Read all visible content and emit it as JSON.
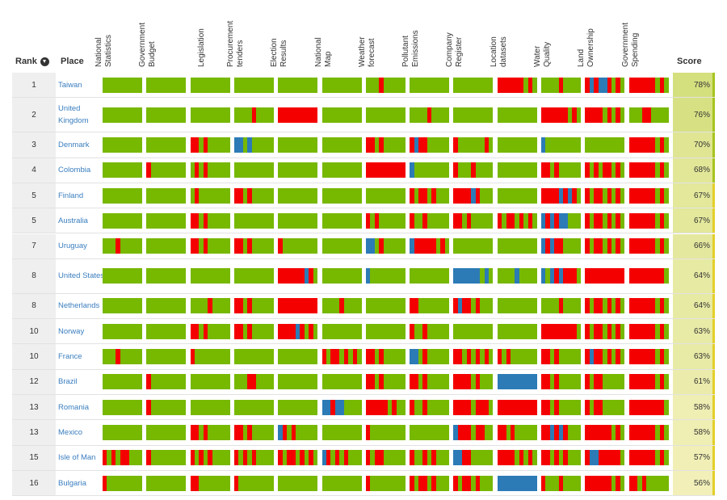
{
  "header": {
    "rank_label": "Rank",
    "place_label": "Place",
    "score_label": "Score",
    "sort_icon": "sort-down-circle-icon"
  },
  "datasets": [
    [
      "National",
      "Statistics"
    ],
    [
      "Government",
      "Budget"
    ],
    [
      "Legislation"
    ],
    [
      "Procurement",
      "tenders"
    ],
    [
      "Election",
      "Results"
    ],
    [
      "National",
      "Map"
    ],
    [
      "Weather",
      "forecast"
    ],
    [
      "Pollutant",
      "Emissions"
    ],
    [
      "Company",
      "Register"
    ],
    [
      "Location",
      "datasets"
    ],
    [
      "Water",
      "Quality"
    ],
    [
      "Land",
      "Ownership"
    ],
    [
      "Government",
      "Spending"
    ]
  ],
  "colors": {
    "open": "#77b800",
    "missing": "#f40000",
    "partial": "#2c7bb6",
    "rank_bg": "#efefef",
    "place_link": "#3a7ebf",
    "score_bg_high": "#d4df7e",
    "score_bg_low": "#f2f0b8"
  },
  "rows": [
    {
      "rank": "1",
      "place": "Taiwan",
      "score": "78%",
      "score_value": 78,
      "tall": false,
      "cells": [
        "GGGGGGGGG",
        "GGGGGGGGG",
        "GGGGGGGGG",
        "GGGGGGGGG",
        "GGGGGGGGG",
        "GGGGGGGGG",
        "GGGRGGGGG",
        "GGGGGGGGG",
        "GGGGGGGGG",
        "RRRRRRGRG",
        "GGGGRGGGG",
        "RBRBBRGRG",
        "RRRRRRGRG"
      ]
    },
    {
      "rank": "2",
      "place": "United Kingdom",
      "score": "76%",
      "score_value": 76,
      "tall": true,
      "cells": [
        "GGGGGGGGG",
        "GGGGGGGGG",
        "GGGGGGGGG",
        "GGGGRGGGG",
        "RRRRRRRRR",
        "GGGGGGGGG",
        "GGGGGGGGG",
        "GGGGRGGGG",
        "GGGGGGGGG",
        "GGGGGGGGG",
        "RRRRRRGRG",
        "RRRRGRGRG",
        "GGGRRGGGG"
      ]
    },
    {
      "rank": "3",
      "place": "Denmark",
      "score": "70%",
      "score_value": 70,
      "tall": false,
      "cells": [
        "GGGGGGGGG",
        "GGGGGGGGG",
        "RRGRGGGGG",
        "BBGBGGGGG",
        "GGGGGGGGG",
        "GGGGGGGGG",
        "RRGRGGGGG",
        "RBRRGGGGG",
        "RGGGGGGRG",
        "GGGGGGGGG",
        "BGGGGGGGG",
        "GGGGGGGGG",
        "RRRRRRGRG"
      ]
    },
    {
      "rank": "4",
      "place": "Colombia",
      "score": "68%",
      "score_value": 68,
      "tall": false,
      "cells": [
        "GGGGGGGGG",
        "RGGGGGGGG",
        "GRGRGGGGG",
        "GGGGGGGGG",
        "GGGGGGGGG",
        "GGGGGGGGG",
        "RRRRRRRRR",
        "BGGGGGGGG",
        "RGGGRGGGG",
        "GGGGGGGGG",
        "RRGRGGGGG",
        "RGRGRRGRG",
        "RRRRRRGRG"
      ]
    },
    {
      "rank": "5",
      "place": "Finland",
      "score": "67%",
      "score_value": 67,
      "tall": false,
      "cells": [
        "GGGGGGGGG",
        "GGGGGGGGG",
        "GRGGGGGGG",
        "RRGRGGGGG",
        "GGGGGGGGG",
        "GGGGGGGGG",
        "GGGGGGGGG",
        "RGRRGRGGG",
        "RRRRBRGGG",
        "GGGGGGGGG",
        "RRRRBRBRG",
        "RGRRGRGRG",
        "RRRRRRGRG"
      ]
    },
    {
      "rank": "5",
      "place": "Australia",
      "score": "67%",
      "score_value": 67,
      "tall": false,
      "cells": [
        "GGGGGGGGG",
        "GGGGGGGGG",
        "RRGRGGGGG",
        "GGGGGGGGG",
        "GGGGGGGGG",
        "GGGGGGGGG",
        "RGRGGGGGG",
        "RGGRGGGGG",
        "RRGRGGGGG",
        "RGRRGRGRG",
        "BRBRBBGGG",
        "RGRRGRGRG",
        "RRRRRRGRG"
      ]
    },
    {
      "rank": "7",
      "place": "Uruguay",
      "score": "66%",
      "score_value": 66,
      "tall": false,
      "cells": [
        "GGGRGGGGG",
        "GGGGGGGGG",
        "RRGRGGGGG",
        "RRGRGGGGG",
        "RGGGGGGGG",
        "GGGGGGGGG",
        "BBGRGGGGG",
        "BRRRRRGRG",
        "GGGGGGGGG",
        "GGGGGGGGG",
        "BRBRRGGGG",
        "RGRRGRGRG",
        "RRRRRRGRG"
      ]
    },
    {
      "rank": "8",
      "place": "United States",
      "score": "64%",
      "score_value": 64,
      "tall": true,
      "cells": [
        "GGGGGGGGG",
        "GGGGGGGGG",
        "GGGGGGGGG",
        "GGGGGGGGG",
        "RRRRRRBRG",
        "GGGGGGGGG",
        "BGGGGGGGG",
        "GGGGGGGGG",
        "BBBBBBGBG",
        "GGGGBGGGG",
        "BGBRBRRRG",
        "RRRRRRRRR",
        "RRRRRRRRG"
      ]
    },
    {
      "rank": "8",
      "place": "Netherlands",
      "score": "64%",
      "score_value": 64,
      "tall": false,
      "cells": [
        "GGGGGGGGG",
        "GGGGGGGGG",
        "GGGGRGGGG",
        "RRGRGGGGG",
        "RRRRRRRRR",
        "GGGGRGGGG",
        "GGGGGGGGG",
        "RRGGGGGGG",
        "RBRRGRGGG",
        "GGGGGGGGG",
        "GGGGRGGGG",
        "RGRRGRGRG",
        "RRRRRRGRG"
      ]
    },
    {
      "rank": "10",
      "place": "Norway",
      "score": "63%",
      "score_value": 63,
      "tall": false,
      "cells": [
        "GGGGGGGGG",
        "GGGGGGGGG",
        "RRGRGGGGG",
        "RRGRGGGGG",
        "RRRRBRGRG",
        "GGGGGGGGG",
        "GGGGGGGGG",
        "RGGRGGGGG",
        "GGGGGGGGG",
        "GGGGGGGGG",
        "RRRRRRRRG",
        "RGRRGRGRG",
        "RRRRRRGRG"
      ]
    },
    {
      "rank": "10",
      "place": "France",
      "score": "63%",
      "score_value": 63,
      "tall": false,
      "cells": [
        "GGGRGGGGG",
        "GGGGGGGGG",
        "RGGGGGGGG",
        "GGGGGGGGG",
        "GGGGGGGGG",
        "RGRRGRGRG",
        "RRGRGGGGG",
        "BBGRGGGGG",
        "RRGRGRGRG",
        "RGRGGGGGG",
        "RRGRGGGGG",
        "RBRRGRGRG",
        "RRRRRRGRG"
      ]
    },
    {
      "rank": "12",
      "place": "Brazil",
      "score": "61%",
      "score_value": 61,
      "tall": false,
      "cells": [
        "GGGGGGGGG",
        "RGGGGGGGG",
        "GGGGGGGGG",
        "GGGRRGGGG",
        "GGGGGGGGG",
        "GGGGGGGGG",
        "RRGRGGGGG",
        "RRGRGGGGG",
        "RRRRGRGGG",
        "BBBBBBBBB",
        "RRGRGGGGG",
        "RGRRGGGGG",
        "RRRRRRGRG"
      ]
    },
    {
      "rank": "13",
      "place": "Romania",
      "score": "58%",
      "score_value": 58,
      "tall": false,
      "cells": [
        "GGGGGGGGG",
        "RGGGGGGGG",
        "GGGGGGGGG",
        "GGGGGGGGG",
        "GGGGGGGGG",
        "BBRBBGGGG",
        "RRRRRGRGG",
        "RGGRGGGGG",
        "RRRRGRRRG",
        "RRRRRRRRR",
        "RRGRGGGGG",
        "RGRRGGGGG",
        "RRRRRRRRG"
      ]
    },
    {
      "rank": "13",
      "place": "Mexico",
      "score": "58%",
      "score_value": 58,
      "tall": false,
      "cells": [
        "GGGGGGGGG",
        "GGGGGGGGG",
        "RRGRGGGGG",
        "RRGRGGGGG",
        "BRGRGGGGG",
        "GGGGGGGGG",
        "RGGGGGGGG",
        "GGGGGGGGG",
        "BRRRGRRGG",
        "RRGRGGGGG",
        "RRBRBRGGG",
        "RRRRRRGRG",
        "RRRRRRGRG"
      ]
    },
    {
      "rank": "15",
      "place": "Isle of Man",
      "score": "57%",
      "score_value": 57,
      "tall": false,
      "cells": [
        "RGRGRRGGG",
        "RGGGGGGGG",
        "RGRGRGGGG",
        "RGRGRGGGG",
        "RGRRGRGRG",
        "BRGRGRGGG",
        "RGRRGGGGG",
        "RGGRGRGGG",
        "BBRRGGGGG",
        "RRRRGRGRG",
        "RRGRGRGGG",
        "RBBRRRRRG",
        "RRRRRRGRG"
      ]
    },
    {
      "rank": "16",
      "place": "Bulgaria",
      "score": "56%",
      "score_value": 56,
      "tall": false,
      "cells": [
        "RGGGGGGGG",
        "GGGGGGGGG",
        "RRGGGGGGG",
        "RGGGGGGGG",
        "GGGGGGGGG",
        "GGGGGGGGG",
        "RGGGGGGGG",
        "RGRRGRGGG",
        "RGRRGRGGG",
        "BBBBBBBBB",
        "RGGGRGGGG",
        "RRRRRRGRG",
        "RRGRGGGGG"
      ]
    }
  ]
}
